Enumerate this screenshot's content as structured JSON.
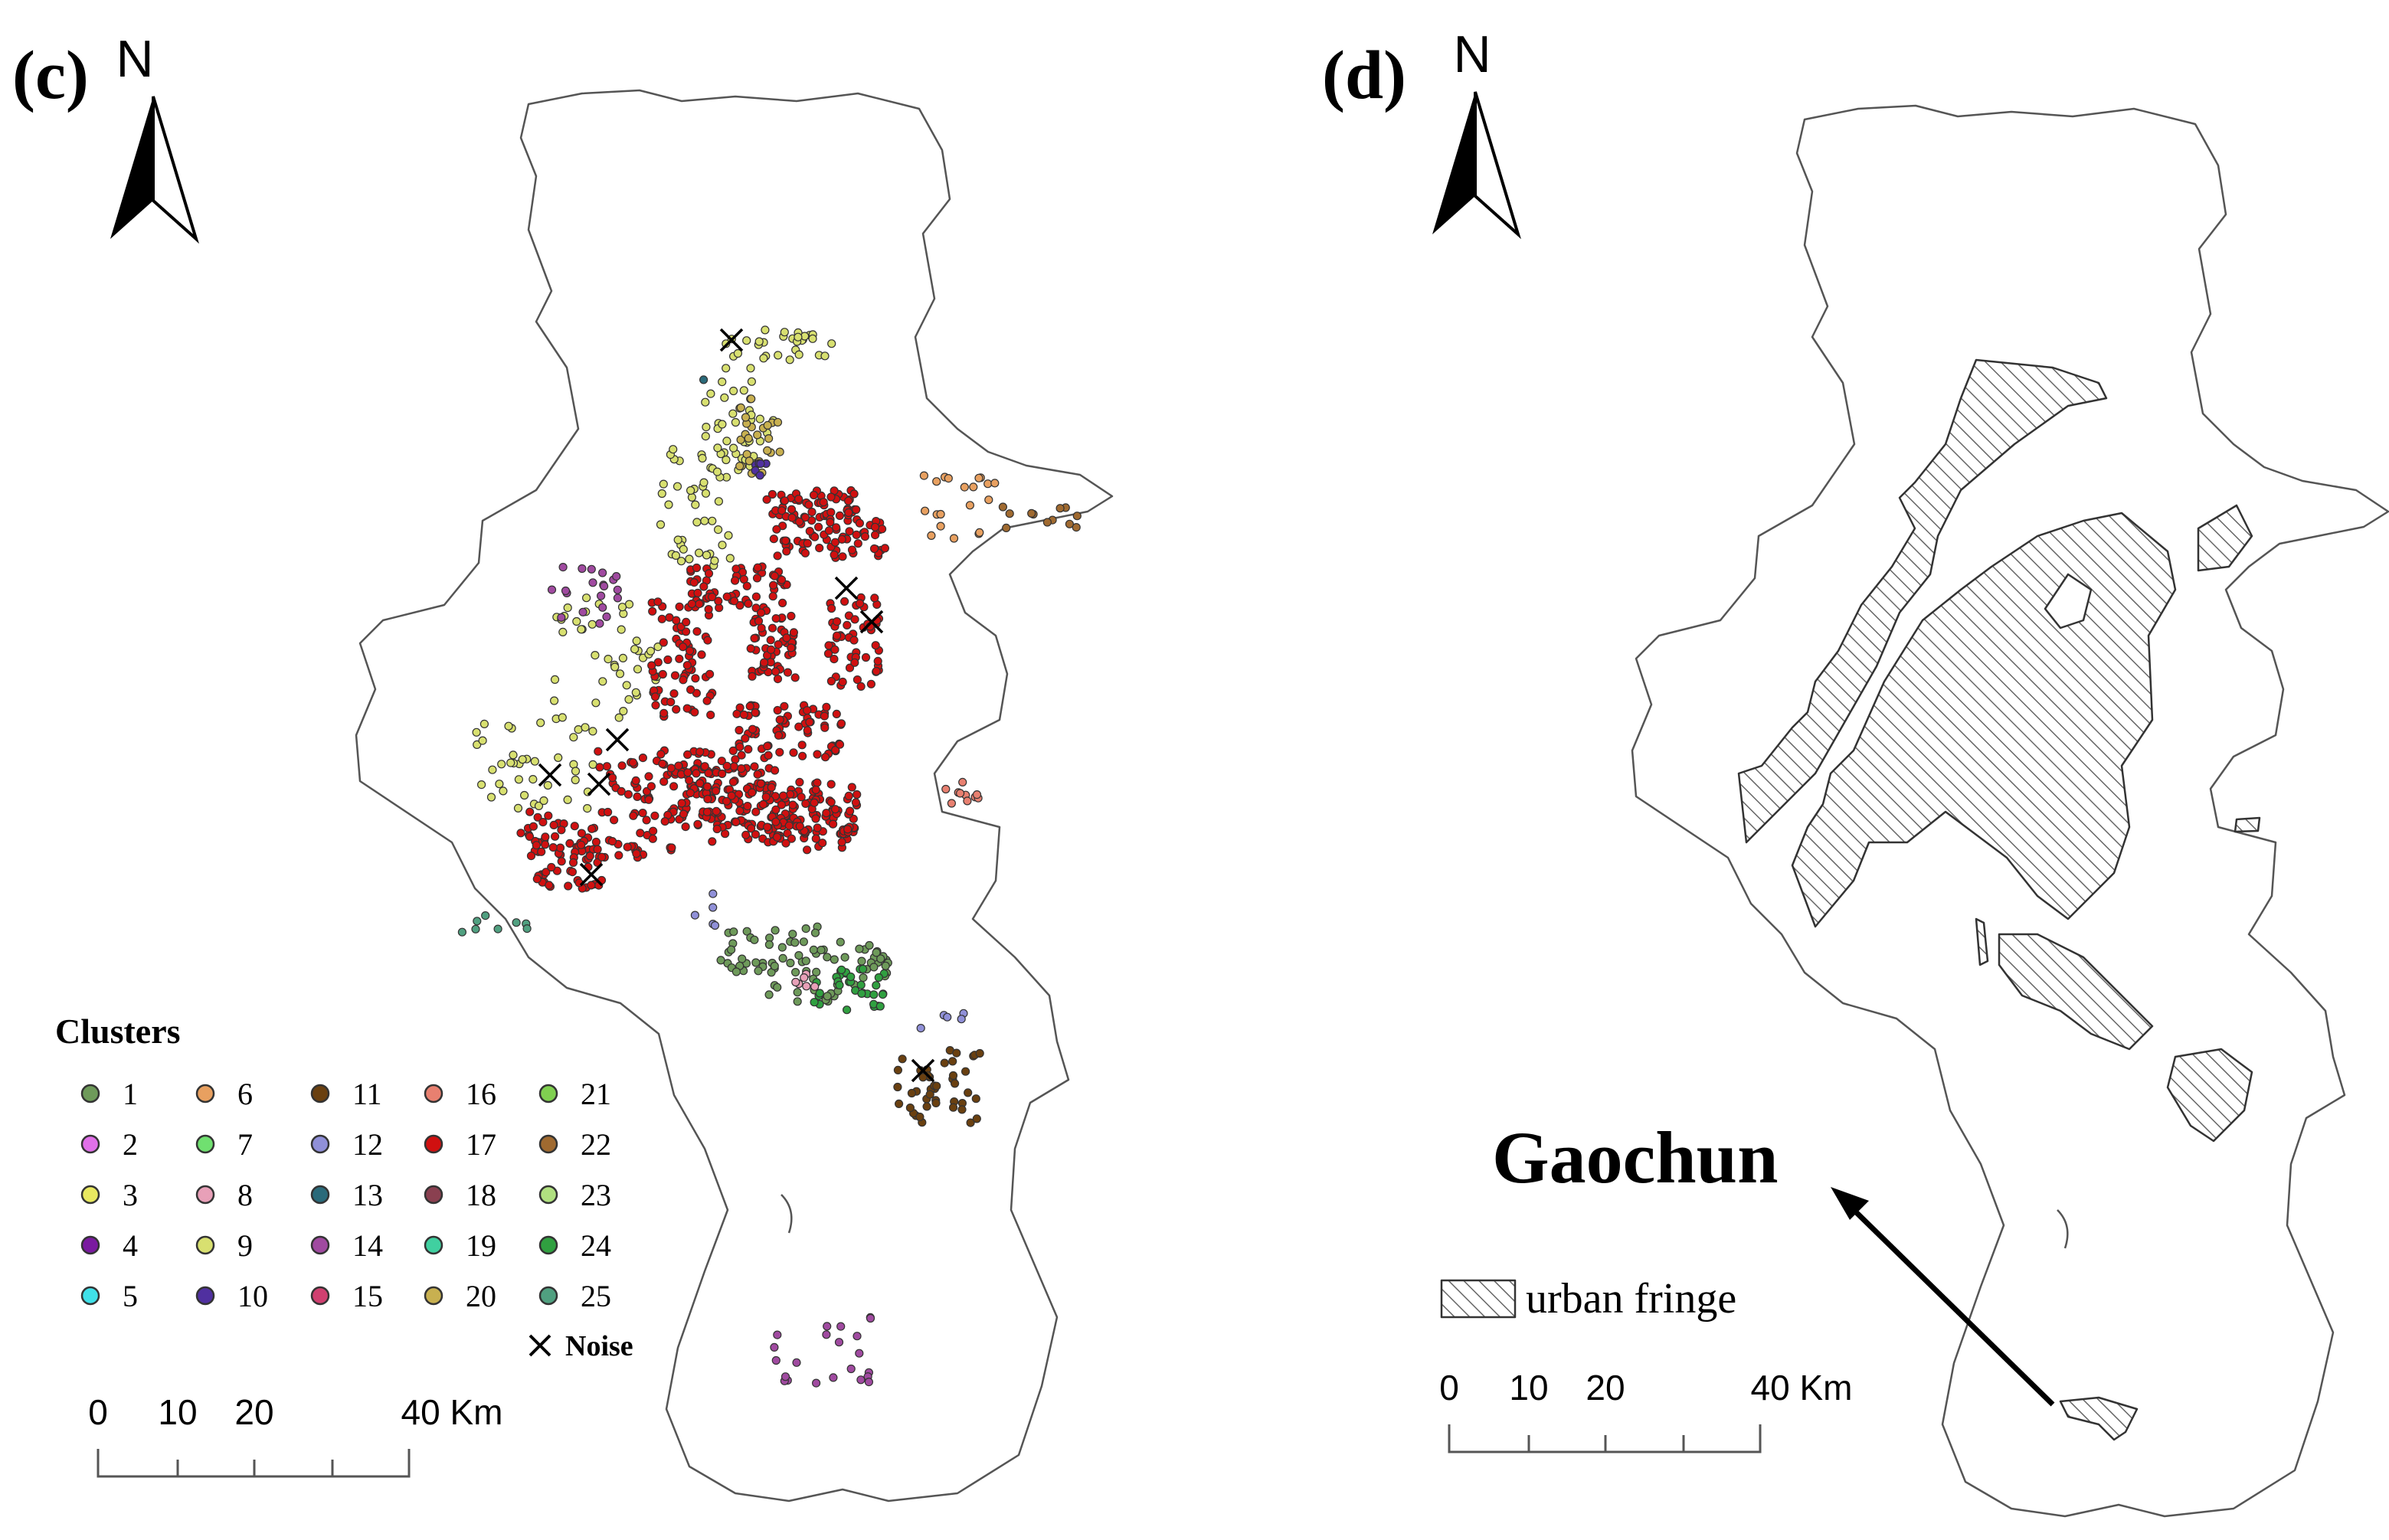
{
  "panel_c": {
    "label": "(c)",
    "north_label": "N",
    "legend": {
      "title": "Clusters",
      "items": [
        {
          "label": "1",
          "color": "#6e9a5a"
        },
        {
          "label": "2",
          "color": "#e070e8"
        },
        {
          "label": "3",
          "color": "#e8e860"
        },
        {
          "label": "4",
          "color": "#7a1aa0"
        },
        {
          "label": "5",
          "color": "#40e0e8"
        },
        {
          "label": "6",
          "color": "#e8a060"
        },
        {
          "label": "7",
          "color": "#70e070"
        },
        {
          "label": "8",
          "color": "#e8a0b8"
        },
        {
          "label": "9",
          "color": "#d8e070"
        },
        {
          "label": "10",
          "color": "#5030a0"
        },
        {
          "label": "11",
          "color": "#6a4010"
        },
        {
          "label": "12",
          "color": "#9090d8"
        },
        {
          "label": "13",
          "color": "#2a6a7a"
        },
        {
          "label": "14",
          "color": "#a04aa0"
        },
        {
          "label": "15",
          "color": "#d04070"
        },
        {
          "label": "16",
          "color": "#e88070"
        },
        {
          "label": "17",
          "color": "#d01010"
        },
        {
          "label": "18",
          "color": "#8a4050"
        },
        {
          "label": "19",
          "color": "#40d0a0"
        },
        {
          "label": "20",
          "color": "#c8b050"
        },
        {
          "label": "21",
          "color": "#80d050"
        },
        {
          "label": "22",
          "color": "#a06a30"
        },
        {
          "label": "23",
          "color": "#b0e080"
        },
        {
          "label": "24",
          "color": "#30a040"
        },
        {
          "label": "25",
          "color": "#50a080"
        }
      ],
      "noise_label": "Noise"
    },
    "scale_bar": {
      "labels": [
        "0",
        "10",
        "20",
        "40 Km"
      ]
    }
  },
  "panel_d": {
    "label": "(d)",
    "north_label": "N",
    "place_label": "Gaochun",
    "legend_label": "urban fringe",
    "scale_bar": {
      "labels": [
        "0",
        "10",
        "20",
        "40 Km"
      ]
    }
  }
}
